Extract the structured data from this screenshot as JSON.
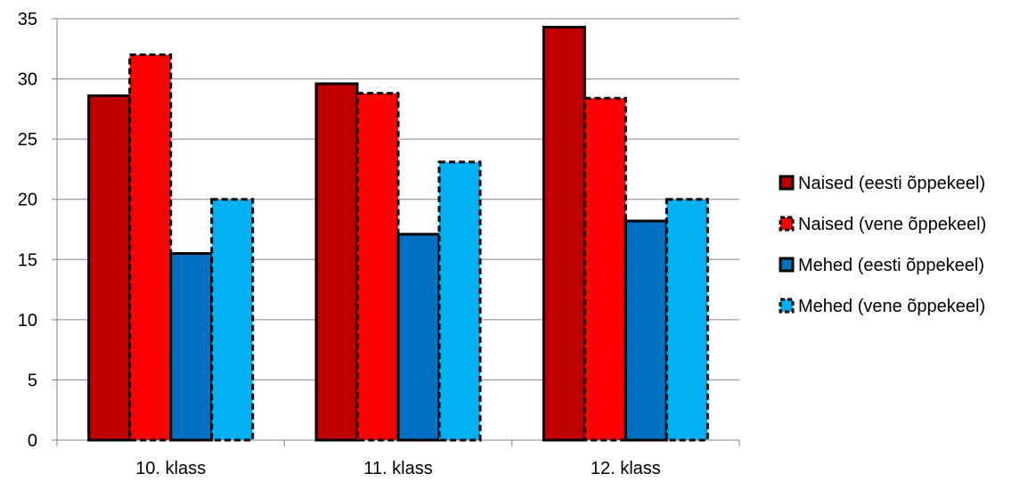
{
  "chart_data": {
    "type": "bar",
    "title": "",
    "xlabel": "",
    "ylabel": "",
    "categories": [
      "10. klass",
      "11. klass",
      "12. klass"
    ],
    "series": [
      {
        "name": "Naised (eesti õppekeel)",
        "values": [
          28.6,
          29.6,
          34.3
        ],
        "color": "#C00000",
        "border": "solid"
      },
      {
        "name": "Naised (vene õppekeel)",
        "values": [
          32.0,
          28.8,
          28.4
        ],
        "color": "#FF0000",
        "border": "dashed"
      },
      {
        "name": "Mehed (eesti õppekeel)",
        "values": [
          15.5,
          17.1,
          18.2
        ],
        "color": "#0070C0",
        "border": "solid"
      },
      {
        "name": "Mehed (vene õppekeel)",
        "values": [
          20.0,
          23.1,
          20.0
        ],
        "color": "#00B0F0",
        "border": "dashed"
      }
    ],
    "ylim": [
      0,
      35
    ],
    "yticks": [
      0,
      5,
      10,
      15,
      20,
      25,
      30,
      35
    ],
    "grid": true,
    "legend_position": "right"
  }
}
